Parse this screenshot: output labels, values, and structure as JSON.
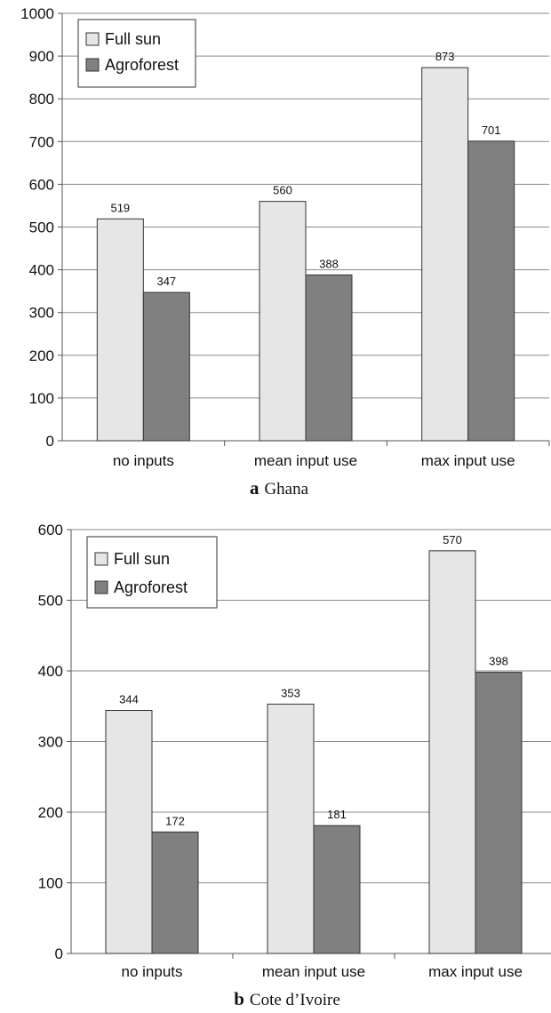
{
  "chart_data": [
    {
      "type": "bar",
      "caption_letter": "a",
      "caption_text": "Ghana",
      "categories": [
        "no inputs",
        "mean input use",
        "max input use"
      ],
      "series": [
        {
          "name": "Full sun",
          "values": [
            519,
            560,
            873
          ],
          "color": "#e6e6e6"
        },
        {
          "name": "Agroforest",
          "values": [
            347,
            388,
            701
          ],
          "color": "#808080"
        }
      ],
      "ylim": [
        0,
        1000
      ],
      "yticks": [
        0,
        100,
        200,
        300,
        400,
        500,
        600,
        700,
        800,
        900,
        1000
      ],
      "grid": true,
      "legend_position": "top-left"
    },
    {
      "type": "bar",
      "caption_letter": "b",
      "caption_text": "Cote d’Ivoire",
      "categories": [
        "no inputs",
        "mean input use",
        "max input use"
      ],
      "series": [
        {
          "name": "Full sun",
          "values": [
            344,
            353,
            570
          ],
          "color": "#e6e6e6"
        },
        {
          "name": "Agroforest",
          "values": [
            172,
            181,
            398
          ],
          "color": "#808080"
        }
      ],
      "ylim": [
        0,
        600
      ],
      "yticks": [
        0,
        100,
        200,
        300,
        400,
        500,
        600
      ],
      "grid": true,
      "legend_position": "top-left"
    }
  ]
}
